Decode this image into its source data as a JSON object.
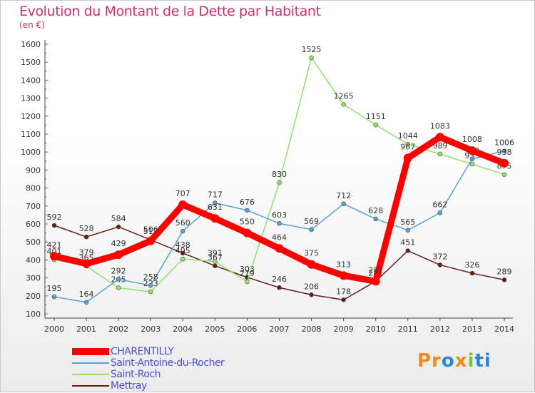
{
  "chart_data": {
    "type": "line",
    "title": "Evolution du Montant de la Dette par Habitant",
    "subtitle": "(en €)",
    "x": [
      "2000",
      "2001",
      "2002",
      "2003",
      "2004",
      "2005",
      "2006",
      "2007",
      "2008",
      "2009",
      "2010",
      "2011",
      "2012",
      "2013",
      "2014"
    ],
    "ylim": [
      100,
      1600
    ],
    "yticks": [
      100,
      200,
      300,
      400,
      500,
      600,
      700,
      800,
      900,
      1000,
      1100,
      1200,
      1300,
      1400,
      1500,
      1600
    ],
    "grid": false,
    "legend_position": "bottom-left",
    "series": [
      {
        "name": "Mettray",
        "color": "#6b1a1a",
        "values": [
          592,
          528,
          584,
          512,
          438,
          367,
          303,
          246,
          206,
          178,
          281,
          451,
          372,
          326,
          289
        ]
      },
      {
        "name": "Saint-Roch",
        "color": "#8ee06a",
        "values": [
          401,
          365,
          245,
          223,
          405,
          391,
          279,
          830,
          1525,
          1265,
          1151,
          1044,
          989,
          933,
          875
        ]
      },
      {
        "name": "Saint-Antoine-du-Rocher",
        "color": "#5a9fd0",
        "values": [
          195,
          164,
          292,
          258,
          560,
          717,
          676,
          603,
          569,
          712,
          628,
          565,
          662,
          962,
          1006
        ]
      },
      {
        "name": "CHARENTILLY",
        "color": "#ff0000",
        "values": [
          421,
          379,
          429,
          506,
          707,
          631,
          550,
          464,
          375,
          313,
          281,
          967,
          1083,
          1008,
          938
        ]
      }
    ]
  },
  "legend": [
    {
      "name": "CHARENTILLY",
      "color": "#ff0000"
    },
    {
      "name": "Saint-Antoine-du-Rocher",
      "color": "#5a9fd0"
    },
    {
      "name": "Saint-Roch",
      "color": "#8ee06a"
    },
    {
      "name": "Mettray",
      "color": "#6b1a1a"
    }
  ],
  "logo": {
    "part1": "Pr",
    "part2": "o",
    "part3": "x",
    "part4": "i",
    "part5": "ti"
  }
}
